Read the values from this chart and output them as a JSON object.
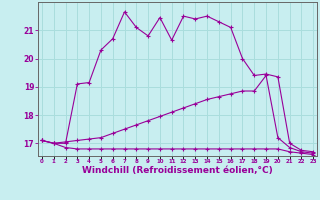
{
  "background_color": "#c8eef0",
  "grid_color": "#aadddd",
  "line_color": "#990099",
  "xlabel": "Windchill (Refroidissement éolien,°C)",
  "xlabel_fontsize": 6.5,
  "ylabel_ticks": [
    17,
    18,
    19,
    20,
    21
  ],
  "xticks": [
    0,
    1,
    2,
    3,
    4,
    5,
    6,
    7,
    8,
    9,
    10,
    11,
    12,
    13,
    14,
    15,
    16,
    17,
    18,
    19,
    20,
    21,
    22,
    23
  ],
  "xlim": [
    -0.3,
    23.3
  ],
  "ylim": [
    16.55,
    22.0
  ],
  "curve1_x": [
    0,
    1,
    2,
    3,
    4,
    5,
    6,
    7,
    8,
    9,
    10,
    11,
    12,
    13,
    14,
    15,
    16,
    17,
    18,
    19,
    20,
    21,
    22,
    23
  ],
  "curve1_y": [
    17.1,
    17.0,
    17.0,
    19.1,
    19.15,
    20.3,
    20.7,
    21.65,
    21.1,
    20.8,
    21.45,
    20.65,
    21.5,
    21.4,
    21.5,
    21.3,
    21.1,
    20.0,
    19.4,
    19.45,
    19.35,
    17.0,
    16.75,
    16.7
  ],
  "curve2_x": [
    0,
    1,
    2,
    3,
    4,
    5,
    6,
    7,
    8,
    9,
    10,
    11,
    12,
    13,
    14,
    15,
    16,
    17,
    18,
    19,
    20,
    21,
    22,
    23
  ],
  "curve2_y": [
    17.1,
    17.0,
    17.05,
    17.1,
    17.15,
    17.2,
    17.35,
    17.5,
    17.65,
    17.8,
    17.95,
    18.1,
    18.25,
    18.4,
    18.55,
    18.65,
    18.75,
    18.85,
    18.85,
    19.4,
    17.2,
    16.85,
    16.7,
    16.65
  ],
  "curve3_x": [
    0,
    1,
    2,
    3,
    4,
    5,
    6,
    7,
    8,
    9,
    10,
    11,
    12,
    13,
    14,
    15,
    16,
    17,
    18,
    19,
    20,
    21,
    22,
    23
  ],
  "curve3_y": [
    17.1,
    17.0,
    16.85,
    16.8,
    16.8,
    16.8,
    16.8,
    16.8,
    16.8,
    16.8,
    16.8,
    16.8,
    16.8,
    16.8,
    16.8,
    16.8,
    16.8,
    16.8,
    16.8,
    16.8,
    16.8,
    16.7,
    16.65,
    16.6
  ]
}
